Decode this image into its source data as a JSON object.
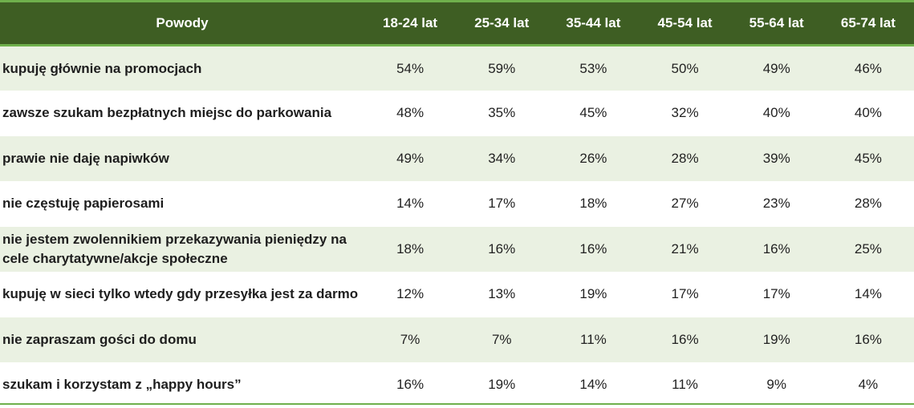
{
  "chart_data": {
    "type": "table",
    "columns": [
      "Powody",
      "18-24 lat",
      "25-34 lat",
      "35-44 lat",
      "45-54 lat",
      "55-64 lat",
      "65-74 lat"
    ],
    "rows": [
      {
        "label": "kupuję głównie na promocjach",
        "values": [
          "54%",
          "59%",
          "53%",
          "50%",
          "49%",
          "46%"
        ]
      },
      {
        "label": "zawsze szukam bezpłatnych miejsc do parkowania",
        "values": [
          "48%",
          "35%",
          "45%",
          "32%",
          "40%",
          "40%"
        ]
      },
      {
        "label": "prawie nie daję napiwków",
        "values": [
          "49%",
          "34%",
          "26%",
          "28%",
          "39%",
          "45%"
        ]
      },
      {
        "label": "nie częstuję papierosami",
        "values": [
          "14%",
          "17%",
          "18%",
          "27%",
          "23%",
          "28%"
        ]
      },
      {
        "label": "nie jestem zwolennikiem przekazywania pieniędzy na cele charytatywne/akcje społeczne",
        "values": [
          "18%",
          "16%",
          "16%",
          "21%",
          "16%",
          "25%"
        ]
      },
      {
        "label": "kupuję w sieci tylko wtedy gdy przesyłka jest za darmo",
        "values": [
          "12%",
          "13%",
          "19%",
          "17%",
          "17%",
          "14%"
        ]
      },
      {
        "label": "nie zapraszam gości do domu",
        "values": [
          "7%",
          "7%",
          "11%",
          "16%",
          "19%",
          "16%"
        ]
      },
      {
        "label": "szukam i korzystam z „happy hours”",
        "values": [
          "16%",
          "19%",
          "14%",
          "11%",
          "9%",
          "4%"
        ]
      }
    ]
  },
  "colors": {
    "header_bg": "#3e5e23",
    "header_border": "#6fb04c",
    "row_alt_bg": "#eaf1e2",
    "header_text": "#ffffff"
  }
}
